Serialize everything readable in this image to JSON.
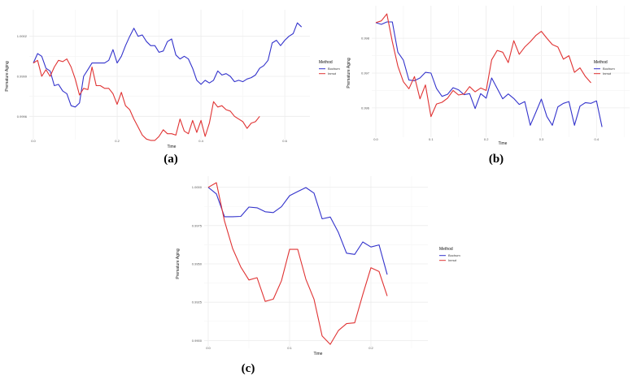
{
  "figure": {
    "captions": [
      "(a)",
      "(b)",
      "(c)"
    ]
  },
  "colors": {
    "bochum": "#3333cc",
    "inmut": "#e03333",
    "grid": "#ececec"
  },
  "chart_data": [
    {
      "panel": "(a)",
      "type": "line",
      "title": "",
      "xlabel": "Time",
      "ylabel": "Premature Aging",
      "x_ticks": [
        "0.0",
        "0.2",
        "0.4",
        "0.6"
      ],
      "y_ticks": [
        "1.0002",
        "0.9999",
        "0.9996"
      ],
      "xlim": [
        0.0,
        0.66
      ],
      "ylim": [
        0.99945,
        1.00035
      ],
      "legend": {
        "title": "Method",
        "position": "right",
        "entries": [
          "Bochum",
          "Inmut"
        ]
      },
      "grid": true,
      "x": [
        0.0,
        0.01,
        0.02,
        0.03,
        0.04,
        0.05,
        0.06,
        0.07,
        0.08,
        0.09,
        0.1,
        0.11,
        0.12,
        0.13,
        0.14,
        0.15,
        0.16,
        0.17,
        0.18,
        0.19,
        0.2,
        0.21,
        0.22,
        0.23,
        0.24,
        0.25,
        0.26,
        0.27,
        0.28,
        0.29,
        0.3,
        0.31,
        0.32,
        0.33,
        0.34,
        0.35,
        0.36,
        0.37,
        0.38,
        0.39,
        0.4,
        0.41,
        0.42,
        0.43,
        0.44,
        0.45,
        0.46,
        0.47,
        0.48,
        0.49,
        0.5,
        0.51,
        0.52,
        0.53,
        0.54,
        0.55,
        0.56,
        0.57,
        0.58,
        0.59,
        0.6,
        0.61,
        0.62,
        0.63,
        0.64
      ],
      "series": [
        {
          "name": "Bochum",
          "color": "#3333cc",
          "values": [
            1.0,
            1.00007,
            1.00005,
            0.99996,
            0.99994,
            0.99983,
            0.99984,
            0.99979,
            0.99977,
            0.99968,
            0.99967,
            0.9997,
            0.9999,
            0.99995,
            1.0,
            1.0,
            1.0,
            1.0,
            1.00002,
            1.0001,
            1.0,
            1.00005,
            1.00013,
            1.0002,
            1.00026,
            1.0002,
            1.00021,
            1.00016,
            1.00013,
            1.00013,
            1.00008,
            1.00009,
            1.00016,
            1.00018,
            1.00006,
            1.00003,
            1.00005,
            1.00003,
            0.99996,
            0.99987,
            0.99984,
            0.99987,
            0.99985,
            0.99987,
            0.99994,
            0.99991,
            0.99992,
            0.9999,
            0.99986,
            0.99987,
            0.99986,
            0.99988,
            0.99989,
            0.99991,
            0.99996,
            0.99998,
            1.00002,
            1.00015,
            1.00017,
            1.00013,
            1.00017,
            1.0002,
            1.00022,
            1.0003,
            1.00027
          ]
        },
        {
          "name": "Inmut",
          "color": "#e03333",
          "values": [
            1.0,
            1.00002,
            0.9999,
            0.99995,
            0.9999,
            0.99997,
            1.00002,
            1.00001,
            1.00003,
            0.99997,
            0.99988,
            0.99976,
            0.99981,
            0.9998,
            0.99997,
            0.99983,
            0.99983,
            0.99981,
            0.99981,
            0.99977,
            0.99969,
            0.99978,
            0.99968,
            0.99965,
            0.99958,
            0.99952,
            0.99946,
            0.99943,
            0.99942,
            0.99942,
            0.99945,
            0.9995,
            0.99947,
            0.99947,
            0.99946,
            0.99958,
            0.99949,
            0.99947,
            0.99957,
            0.99948,
            0.99957,
            0.99945,
            0.99955,
            0.99971,
            0.99967,
            0.99968,
            0.99965,
            0.99964,
            0.9996,
            0.99958,
            0.99956,
            0.99951,
            0.99955,
            0.99956,
            0.9996
          ]
        }
      ]
    },
    {
      "panel": "(b)",
      "type": "line",
      "title": "",
      "xlabel": "Time",
      "ylabel": "Premature Aging",
      "x_ticks": [
        "0.0",
        "0.1",
        "0.2",
        "0.3",
        "0.4"
      ],
      "y_ticks": [
        "0.998",
        "0.997",
        "0.996"
      ],
      "xlim": [
        0.0,
        0.46
      ],
      "ylim": [
        0.99525,
        0.99875
      ],
      "legend": {
        "title": "Method",
        "position": "right",
        "entries": [
          "Bochum",
          "Inmut"
        ]
      },
      "grid": true,
      "x": [
        0.0,
        0.01,
        0.02,
        0.03,
        0.04,
        0.05,
        0.06,
        0.07,
        0.08,
        0.09,
        0.1,
        0.11,
        0.12,
        0.13,
        0.14,
        0.15,
        0.16,
        0.17,
        0.18,
        0.19,
        0.2,
        0.21,
        0.22,
        0.23,
        0.24,
        0.25,
        0.26,
        0.27,
        0.28,
        0.29,
        0.3,
        0.31,
        0.32,
        0.33,
        0.34,
        0.35,
        0.36,
        0.37,
        0.38,
        0.39,
        0.4,
        0.41,
        0.42,
        0.43,
        0.44
      ],
      "series": [
        {
          "name": "Bochum",
          "color": "#3333cc",
          "values": [
            0.99845,
            0.9984,
            0.99847,
            0.99847,
            0.9976,
            0.99737,
            0.9968,
            0.99678,
            0.99686,
            0.99702,
            0.997,
            0.99656,
            0.99633,
            0.99639,
            0.99658,
            0.99652,
            0.99638,
            0.99641,
            0.99598,
            0.99641,
            0.99628,
            0.99686,
            0.99656,
            0.99626,
            0.9964,
            0.99627,
            0.9961,
            0.99618,
            0.9955,
            0.99587,
            0.99625,
            0.99575,
            0.9955,
            0.99603,
            0.99613,
            0.99618,
            0.9955,
            0.99605,
            0.99615,
            0.99613,
            0.9962,
            0.99545
          ]
        },
        {
          "name": "Inmut",
          "color": "#e03333",
          "values": [
            0.99845,
            0.9985,
            0.9987,
            0.9979,
            0.9972,
            0.99675,
            0.99655,
            0.9969,
            0.99626,
            0.99666,
            0.99575,
            0.99611,
            0.99616,
            0.99628,
            0.9965,
            0.99637,
            0.9964,
            0.99661,
            0.99646,
            0.99657,
            0.9965,
            0.99738,
            0.99765,
            0.9976,
            0.9973,
            0.99793,
            0.99754,
            0.99775,
            0.9979,
            0.99808,
            0.9982,
            0.998,
            0.99782,
            0.99775,
            0.9974,
            0.9975,
            0.99702,
            0.99715,
            0.9969,
            0.99672
          ]
        }
      ]
    },
    {
      "panel": "(c)",
      "type": "line",
      "title": "",
      "xlabel": "Time",
      "ylabel": "Premature Aging",
      "x_ticks": [
        "0.0",
        "0.1",
        "0.2"
      ],
      "y_ticks": [
        "1.0000",
        "0.9975",
        "0.9950",
        "0.9925",
        "0.9900"
      ],
      "xlim": [
        0.0,
        0.27
      ],
      "ylim": [
        0.9897,
        1.0003
      ],
      "legend": {
        "title": "Method",
        "position": "right",
        "entries": [
          "Bochum",
          "Inmut"
        ]
      },
      "grid": true,
      "x": [
        0.0,
        0.01,
        0.02,
        0.03,
        0.04,
        0.05,
        0.06,
        0.07,
        0.08,
        0.09,
        0.1,
        0.11,
        0.12,
        0.13,
        0.14,
        0.15,
        0.16,
        0.17,
        0.18,
        0.19,
        0.2,
        0.21,
        0.22,
        0.23,
        0.24,
        0.25,
        0.26
      ],
      "series": [
        {
          "name": "Bochum",
          "color": "#3333cc",
          "values": [
            1.0,
            0.99957,
            0.99808,
            0.99808,
            0.9981,
            0.99871,
            0.99866,
            0.9984,
            0.99835,
            0.99873,
            0.99945,
            0.99972,
            0.99998,
            0.99962,
            0.99794,
            0.99806,
            0.99705,
            0.9957,
            0.99562,
            0.99643,
            0.9961,
            0.99624,
            0.9943
          ]
        },
        {
          "name": "Inmut",
          "color": "#e03333",
          "values": [
            1.0,
            1.0003,
            0.9978,
            0.996,
            0.9948,
            0.99395,
            0.9941,
            0.99255,
            0.9927,
            0.9939,
            0.99595,
            0.99595,
            0.994,
            0.9927,
            0.9903,
            0.98975,
            0.99065,
            0.9911,
            0.99115,
            0.993,
            0.99475,
            0.9945,
            0.9929
          ]
        }
      ]
    }
  ]
}
